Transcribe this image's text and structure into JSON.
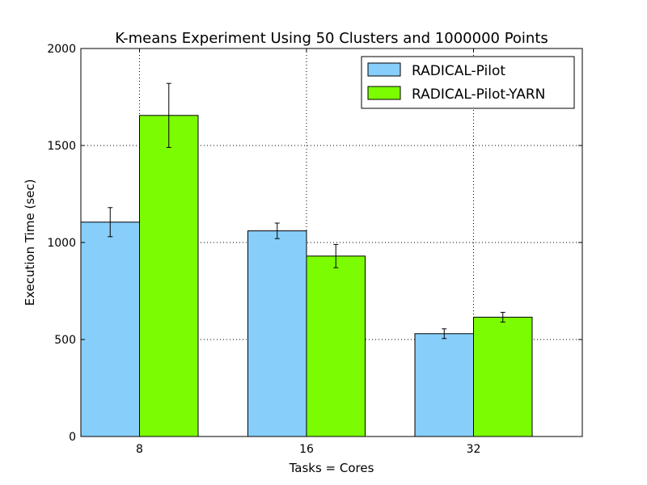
{
  "chart_data": {
    "type": "bar",
    "title": "K-means Experiment Using 50 Clusters and 1000000 Points",
    "xlabel": "Tasks = Cores",
    "ylabel": "Execution Time (sec)",
    "categories": [
      "8",
      "16",
      "32"
    ],
    "ylim": [
      0,
      2000
    ],
    "yticks": [
      0,
      500,
      1000,
      1500,
      2000
    ],
    "grid": true,
    "legend_position": "top-right",
    "series": [
      {
        "name": "RADICAL-Pilot",
        "color": "#87CEFA",
        "values": [
          1105,
          1060,
          530
        ],
        "errors": [
          75,
          40,
          25
        ]
      },
      {
        "name": "RADICAL-Pilot-YARN",
        "color": "#7CFC00",
        "values": [
          1655,
          930,
          615
        ],
        "errors": [
          165,
          60,
          25
        ]
      }
    ]
  }
}
